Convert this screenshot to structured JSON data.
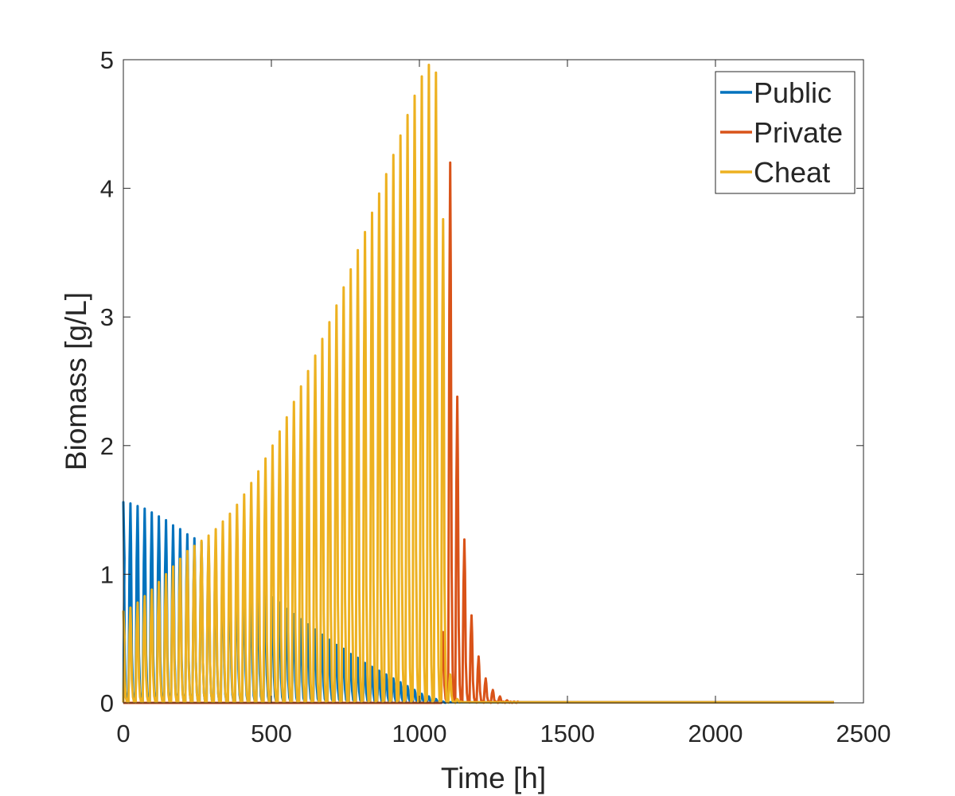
{
  "chart_data": {
    "type": "line",
    "title": "",
    "xlabel": "Time [h]",
    "ylabel": "Biomass [g/L]",
    "xlim": [
      0,
      2500
    ],
    "ylim": [
      0,
      5
    ],
    "xticks": [
      0,
      500,
      1000,
      1500,
      2000,
      2500
    ],
    "yticks": [
      0,
      1,
      2,
      3,
      4,
      5
    ],
    "xtick_labels": [
      "0",
      "500",
      "1000",
      "1500",
      "2000",
      "2500"
    ],
    "ytick_labels": [
      "0",
      "1",
      "2",
      "3",
      "4",
      "5"
    ],
    "grid": false,
    "legend_position": "top-right",
    "series": [
      {
        "name": "Public",
        "color": "#0072BD",
        "pulse_period": 24,
        "peak_times": [
          0,
          24,
          48,
          72,
          96,
          120,
          144,
          168,
          192,
          216,
          240,
          264,
          288,
          312,
          336,
          360,
          384,
          408,
          432,
          456,
          480,
          504,
          528,
          552,
          576,
          600,
          624,
          648,
          672,
          696,
          720,
          744,
          768,
          792,
          816,
          840,
          864,
          888,
          912,
          936,
          960,
          984,
          1008,
          1032,
          1056,
          1080
        ],
        "peak_values": [
          1.56,
          1.55,
          1.53,
          1.51,
          1.48,
          1.45,
          1.42,
          1.38,
          1.35,
          1.31,
          1.28,
          1.25,
          1.22,
          1.18,
          1.14,
          1.09,
          1.05,
          1.0,
          0.96,
          0.91,
          0.87,
          0.82,
          0.78,
          0.73,
          0.69,
          0.65,
          0.61,
          0.57,
          0.53,
          0.49,
          0.45,
          0.42,
          0.38,
          0.35,
          0.31,
          0.28,
          0.25,
          0.22,
          0.19,
          0.16,
          0.13,
          0.1,
          0.07,
          0.05,
          0.03,
          0.01
        ]
      },
      {
        "name": "Private",
        "color": "#D95319",
        "pulse_period": 24,
        "peak_times": [
          1080,
          1104,
          1128,
          1152,
          1176,
          1200,
          1224,
          1248,
          1272,
          1296,
          1320
        ],
        "peak_values": [
          0.55,
          4.2,
          2.38,
          1.27,
          0.68,
          0.36,
          0.19,
          0.1,
          0.05,
          0.02,
          0.01
        ]
      },
      {
        "name": "Cheat",
        "color": "#EDB120",
        "pulse_period": 24,
        "peak_times": [
          0,
          24,
          48,
          72,
          96,
          120,
          144,
          168,
          192,
          216,
          240,
          264,
          288,
          312,
          336,
          360,
          384,
          408,
          432,
          456,
          480,
          504,
          528,
          552,
          576,
          600,
          624,
          648,
          672,
          696,
          720,
          744,
          768,
          792,
          816,
          840,
          864,
          888,
          912,
          936,
          960,
          984,
          1008,
          1032,
          1056,
          1080,
          1104,
          1128
        ],
        "peak_values": [
          0.71,
          0.74,
          0.78,
          0.83,
          0.88,
          0.94,
          1.0,
          1.06,
          1.12,
          1.18,
          1.22,
          1.26,
          1.3,
          1.35,
          1.41,
          1.47,
          1.54,
          1.62,
          1.71,
          1.8,
          1.9,
          2.0,
          2.11,
          2.22,
          2.34,
          2.46,
          2.58,
          2.7,
          2.83,
          2.96,
          3.09,
          3.23,
          3.37,
          3.52,
          3.66,
          3.81,
          3.96,
          4.11,
          4.26,
          4.41,
          4.57,
          4.72,
          4.87,
          4.96,
          4.9,
          3.76,
          0.22,
          0.03
        ]
      }
    ]
  }
}
